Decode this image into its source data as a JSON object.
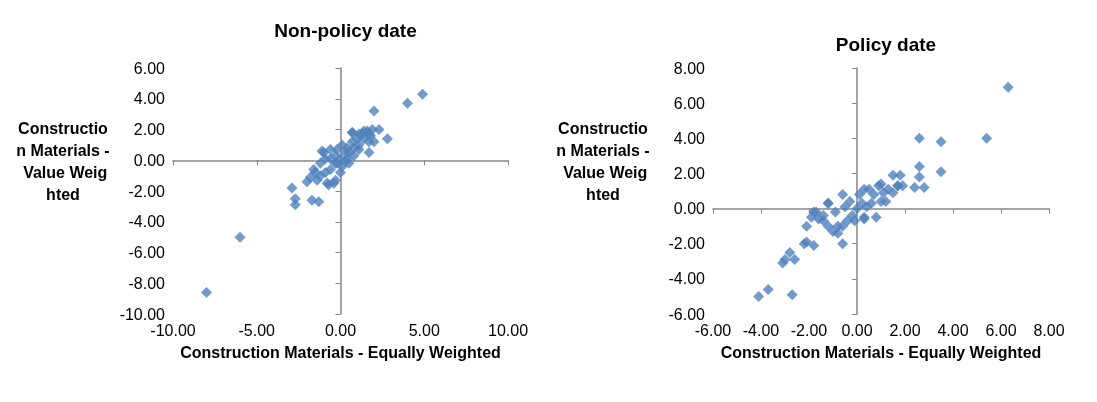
{
  "chart_data": [
    {
      "type": "scatter",
      "title": "Non-policy date",
      "xlabel": "Construction Materials - Equally Weighted",
      "ylabel": "Construction Materials - Value Weighted",
      "color": "#4f81bd",
      "marker": "diamond",
      "xlim": [
        -10,
        10
      ],
      "ylim": [
        -10,
        6
      ],
      "xticks": [
        {
          "value": -10,
          "label": "-10.00"
        },
        {
          "value": -5,
          "label": "-5.00"
        },
        {
          "value": 0,
          "label": "0.00"
        },
        {
          "value": 5,
          "label": "5.00"
        },
        {
          "value": 10,
          "label": "10.00"
        }
      ],
      "yticks": [
        {
          "value": -10,
          "label": "-10.00"
        },
        {
          "value": -8,
          "label": "-8.00"
        },
        {
          "value": -6,
          "label": "-6.00"
        },
        {
          "value": -4,
          "label": "-4.00"
        },
        {
          "value": -2,
          "label": "-2.00"
        },
        {
          "value": 0,
          "label": "0.00"
        },
        {
          "value": 2,
          "label": "2.00"
        },
        {
          "value": 4,
          "label": "4.00"
        },
        {
          "value": 6,
          "label": "6.00"
        }
      ],
      "x": [
        4.9,
        4.0,
        2.0,
        2.3,
        2.8,
        1.7,
        2.0,
        0.7,
        1.7,
        1.4,
        1.1,
        1.9,
        -6.0,
        -8.0,
        -2.9,
        -2.7,
        -2.7,
        -2.0,
        -1.7,
        -1.3,
        -1.0,
        -0.4,
        -0.7,
        -1.1,
        -0.6,
        -0.2,
        0.1,
        0.4,
        0.7,
        1.0,
        0.7,
        1.3,
        1.6,
        1.8,
        1.4,
        1.1,
        0.8,
        0.5,
        0.3,
        -0.3,
        -0.6,
        -0.9,
        -1.2,
        -1.5,
        -1.4,
        -0.8,
        -0.3,
        0.0,
        0.1,
        0.4,
        0.5,
        0.8,
        0.3,
        -0.3,
        -0.6,
        -0.9,
        -1.2,
        -1.6,
        -1.8,
        1.7,
        1.1,
        0.0,
        -0.2
      ],
      "values": [
        4.3,
        3.7,
        3.2,
        2.0,
        1.4,
        0.5,
        1.2,
        1.8,
        1.7,
        1.9,
        1.7,
        2.0,
        -5.0,
        -8.6,
        -1.8,
        -2.5,
        -2.9,
        -1.4,
        -2.6,
        -2.7,
        0.5,
        -1.5,
        -1.6,
        0.6,
        0.1,
        0.7,
        1.0,
        0.8,
        1.2,
        1.4,
        1.8,
        1.7,
        1.9,
        1.6,
        1.4,
        0.7,
        0.3,
        -0.2,
        -0.1,
        -0.2,
        -0.6,
        -0.8,
        -1.0,
        -0.8,
        -1.3,
        -1.5,
        -1.3,
        -0.8,
        -0.4,
        0.1,
        0.5,
        0.8,
        0.5,
        0.3,
        0.7,
        0.1,
        -0.2,
        -0.6,
        -1.1,
        1.2,
        1.0,
        0.1,
        -0.2
      ]
    },
    {
      "type": "scatter",
      "title": "Policy date",
      "xlabel": "Construction Materials - Equally Weighted",
      "ylabel": "Construction Materials - Value Weighted",
      "color": "#4f81bd",
      "marker": "diamond",
      "xlim": [
        -6,
        8
      ],
      "ylim": [
        -6,
        8
      ],
      "xticks": [
        {
          "value": -6,
          "label": "-6.00"
        },
        {
          "value": -4,
          "label": "-4.00"
        },
        {
          "value": -2,
          "label": "-2.00"
        },
        {
          "value": 0,
          "label": "0.00"
        },
        {
          "value": 2,
          "label": "2.00"
        },
        {
          "value": 4,
          "label": "4.00"
        },
        {
          "value": 6,
          "label": "6.00"
        },
        {
          "value": 8,
          "label": "8.00"
        }
      ],
      "yticks": [
        {
          "value": -6,
          "label": "-6.00"
        },
        {
          "value": -4,
          "label": "-4.00"
        },
        {
          "value": -2,
          "label": "-2.00"
        },
        {
          "value": 0,
          "label": "0.00"
        },
        {
          "value": 2,
          "label": "2.00"
        },
        {
          "value": 4,
          "label": "4.00"
        },
        {
          "value": 6,
          "label": "6.00"
        },
        {
          "value": 8,
          "label": "8.00"
        }
      ],
      "x": [
        6.3,
        5.4,
        3.5,
        3.5,
        2.6,
        2.6,
        2.6,
        2.8,
        2.4,
        1.8,
        1.5,
        1.5,
        1.7,
        1.0,
        1.2,
        0.8,
        -0.6,
        -1.2,
        0.3,
        -4.1,
        -3.7,
        -2.7,
        -3.1,
        -3.0,
        -2.8,
        -2.6,
        -2.2,
        -2.1,
        -1.8,
        -2.1,
        -1.8,
        -1.6,
        -1.4,
        -1.0,
        -0.6,
        -0.8,
        -0.3,
        0.1,
        0.3,
        0.5,
        0.7,
        0.9,
        1.1,
        1.0,
        1.3,
        1.7,
        1.9,
        0.2,
        0.0,
        -0.2,
        -0.4,
        -0.6,
        -0.8,
        -1.2,
        -1.4,
        -1.7,
        -1.9,
        -0.9,
        -0.5,
        0.3,
        0.4,
        0.6,
        -1.2,
        -0.1
      ],
      "values": [
        6.9,
        4.0,
        3.8,
        2.1,
        4.0,
        2.4,
        1.8,
        1.2,
        1.2,
        1.9,
        1.9,
        0.9,
        1.3,
        1.4,
        0.4,
        -0.5,
        0.8,
        0.3,
        -0.6,
        -5.0,
        -4.6,
        -4.9,
        -3.1,
        -2.9,
        -2.5,
        -2.9,
        -2.0,
        -1.9,
        -2.1,
        -1.0,
        -0.2,
        -0.6,
        -0.7,
        -1.3,
        -2.0,
        -1.0,
        0.4,
        0.8,
        1.1,
        1.1,
        0.8,
        1.3,
        0.9,
        0.4,
        1.1,
        1.3,
        1.3,
        0.3,
        0.0,
        -0.4,
        -0.7,
        -1.0,
        -1.4,
        -1.0,
        -0.4,
        -0.2,
        -0.5,
        -0.2,
        0.1,
        -0.5,
        0.1,
        0.3,
        0.3,
        -0.7
      ]
    }
  ]
}
